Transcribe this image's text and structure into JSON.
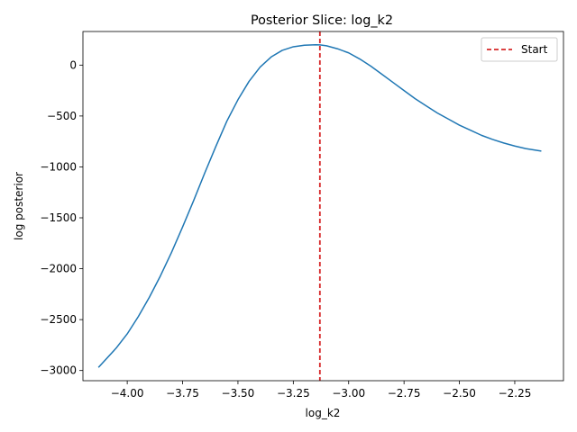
{
  "chart_data": {
    "type": "line",
    "title": "Posterior Slice: log_k2",
    "xlabel": "log_k2",
    "ylabel": "log posterior",
    "xlim": [
      -4.2,
      -2.03
    ],
    "ylim": [
      -3100,
      330
    ],
    "xticks": [
      -4.0,
      -3.75,
      -3.5,
      -3.25,
      -3.0,
      -2.75,
      -2.5,
      -2.25
    ],
    "xtick_labels": [
      "−4.00",
      "−3.75",
      "−3.50",
      "−3.25",
      "−3.00",
      "−2.75",
      "−2.50",
      "−2.25"
    ],
    "yticks": [
      0,
      -500,
      -1000,
      -1500,
      -2000,
      -2500,
      -3000
    ],
    "ytick_labels": [
      "0",
      "−500",
      "−1000",
      "−1500",
      "−2000",
      "−2500",
      "−3000"
    ],
    "grid": false,
    "legend_position": "top-right",
    "series": [
      {
        "name": "",
        "color": "#1f77b4",
        "style": "solid",
        "x": [
          -4.13,
          -4.05,
          -4.0,
          -3.95,
          -3.9,
          -3.85,
          -3.8,
          -3.75,
          -3.7,
          -3.65,
          -3.6,
          -3.55,
          -3.5,
          -3.45,
          -3.4,
          -3.35,
          -3.3,
          -3.25,
          -3.2,
          -3.15,
          -3.13,
          -3.1,
          -3.05,
          -3.0,
          -2.95,
          -2.9,
          -2.85,
          -2.8,
          -2.75,
          -2.7,
          -2.65,
          -2.6,
          -2.55,
          -2.5,
          -2.45,
          -2.4,
          -2.35,
          -2.3,
          -2.25,
          -2.2,
          -2.13
        ],
        "y": [
          -2970,
          -2780,
          -2640,
          -2470,
          -2280,
          -2070,
          -1840,
          -1590,
          -1330,
          -1060,
          -800,
          -550,
          -340,
          -160,
          -20,
          80,
          145,
          180,
          195,
          200,
          198,
          190,
          160,
          120,
          60,
          -10,
          -90,
          -170,
          -250,
          -330,
          -400,
          -470,
          -530,
          -590,
          -640,
          -690,
          -730,
          -765,
          -795,
          -820,
          -845
        ]
      },
      {
        "name": "Start",
        "color": "#d62728",
        "style": "dashed",
        "vline_x": -3.13
      }
    ]
  }
}
